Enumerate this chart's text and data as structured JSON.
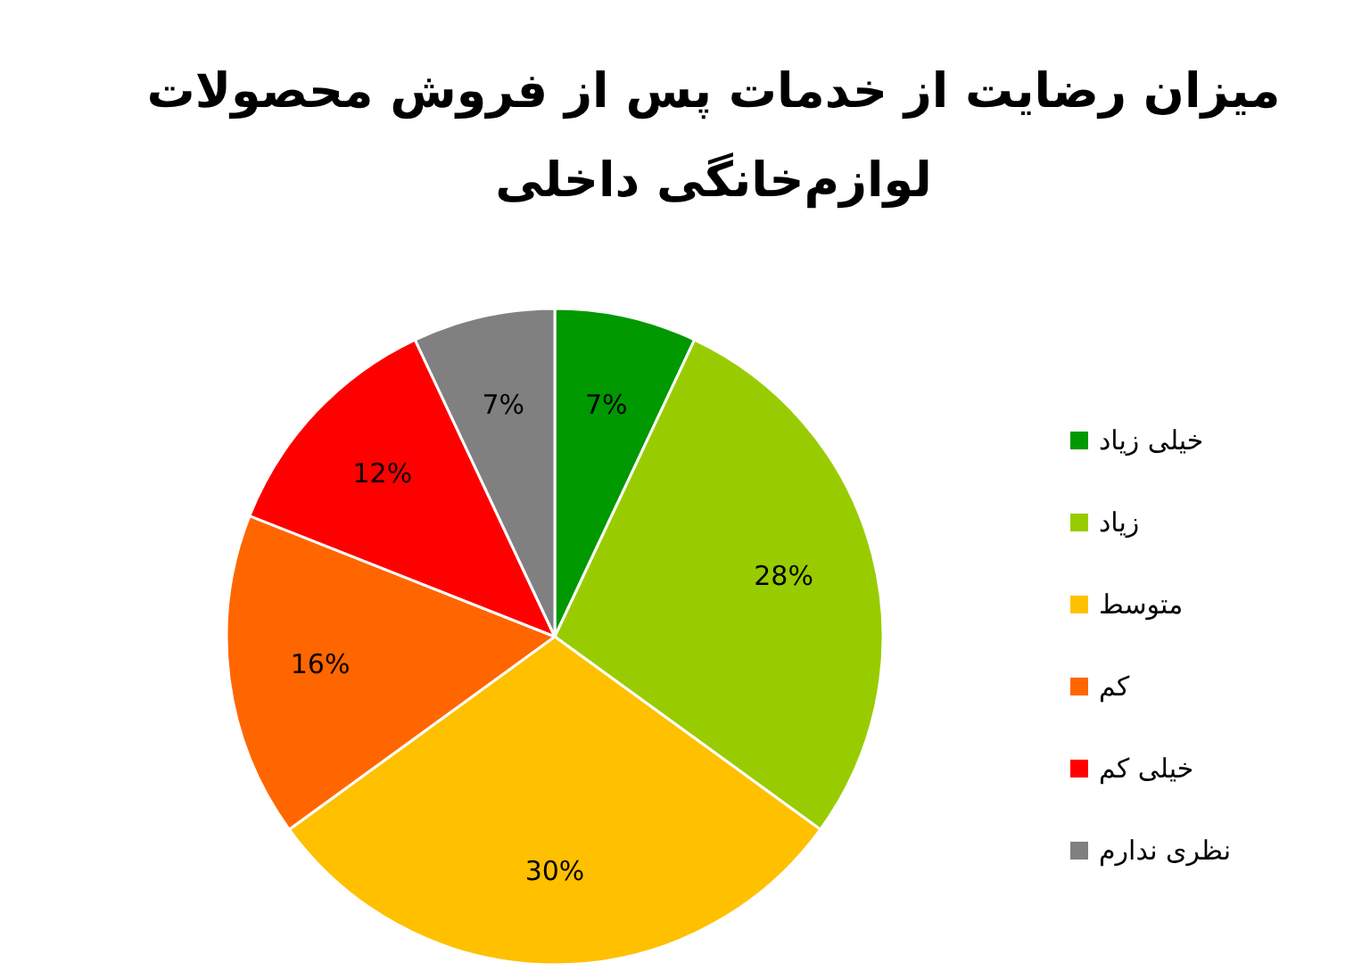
{
  "chart_data": {
    "type": "pie",
    "title": "میزان رضایت از خدمات پس از فروش محصولات\nلوازم‌خانگی داخلی",
    "categories": [
      "خیلی زیاد",
      "زیاد",
      "متوسط",
      "کم",
      "خیلی کم",
      "نظری ندارم"
    ],
    "values": [
      7,
      28,
      30,
      16,
      12,
      7
    ],
    "value_labels": [
      "7%",
      "28%",
      "30%",
      "16%",
      "12%",
      "7%"
    ],
    "colors": [
      "#009900",
      "#99cc00",
      "#ffc000",
      "#ff6600",
      "#ff0000",
      "#808080"
    ],
    "legend": "right"
  }
}
